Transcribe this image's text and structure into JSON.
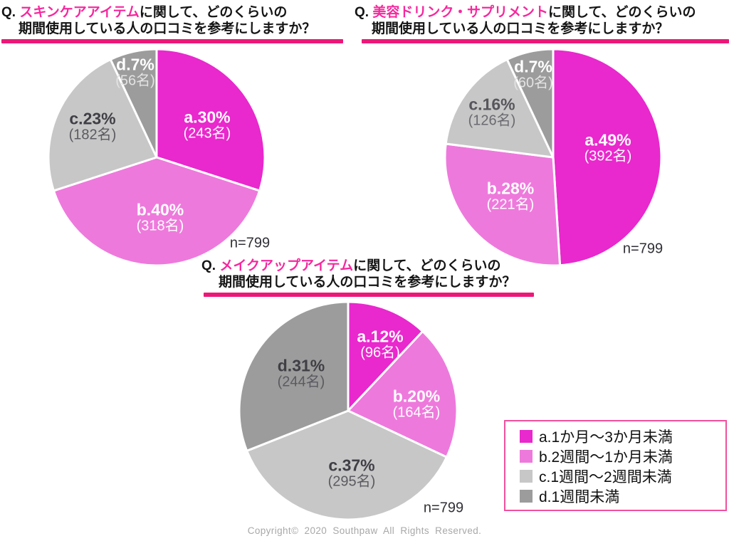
{
  "chart_data": {
    "type": "pie",
    "legend_position": "bottom-right",
    "palette": [
      "#E928CD",
      "#EE79DC",
      "#C7C7C7",
      "#9C9C9C"
    ],
    "categories": [
      "a.1か月～3か月未満",
      "b.2週間～1か月未満",
      "c.1週間～2週間未満",
      "d.1週間未満"
    ],
    "charts": [
      {
        "question_prefix": "Q. ",
        "subject": "スキンケアアイテム",
        "question_suffix": "に関して、どのくらいの",
        "question_line2": "期間使用している人の口コミを参考にしますか？",
        "n_label": "n=799",
        "values": [
          30,
          40,
          23,
          7
        ],
        "counts": [
          243,
          318,
          182,
          56
        ],
        "slice_labels": [
          {
            "pct": "a.30%",
            "count": "(243名)"
          },
          {
            "pct": "b.40%",
            "count": "(318名)"
          },
          {
            "pct": "c.23%",
            "count": "(182名)"
          },
          {
            "pct": "d.7%",
            "count": "(56名)"
          }
        ]
      },
      {
        "question_prefix": "Q. ",
        "subject": "美容ドリンク・サプリメント",
        "question_suffix": "に関して、どのくらいの",
        "question_line2": "期間使用している人の口コミを参考にしますか？",
        "n_label": "n=799",
        "values": [
          49,
          28,
          16,
          7
        ],
        "counts": [
          392,
          221,
          126,
          60
        ],
        "slice_labels": [
          {
            "pct": "a.49%",
            "count": "(392名)"
          },
          {
            "pct": "b.28%",
            "count": "(221名)"
          },
          {
            "pct": "c.16%",
            "count": "(126名)"
          },
          {
            "pct": "d.7%",
            "count": "(60名)"
          }
        ]
      },
      {
        "question_prefix": "Q. ",
        "subject": "メイクアップアイテム",
        "question_suffix": "に関して、どのくらいの",
        "question_line2": "期間使用している人の口コミを参考にしますか？",
        "n_label": "n=799",
        "values": [
          12,
          20,
          37,
          31
        ],
        "counts": [
          96,
          164,
          295,
          244
        ],
        "slice_labels": [
          {
            "pct": "a.12%",
            "count": "(96名)"
          },
          {
            "pct": "b.20%",
            "count": "(164名)"
          },
          {
            "pct": "c.37%",
            "count": "(295名)"
          },
          {
            "pct": "d.31%",
            "count": "(244名)"
          }
        ]
      }
    ]
  },
  "legend": {
    "items": [
      {
        "label": "a.1か月～3か月未満"
      },
      {
        "label": "b.2週間～1か月未満"
      },
      {
        "label": "c.1週間～2週間未満"
      },
      {
        "label": "d.1週間未満"
      }
    ]
  },
  "footer": {
    "copyright": "Copyright©  2020  Southpaw  All  Rights  Reserved."
  },
  "colors": {
    "series_a": "#E928CD",
    "series_b": "#EE79DC",
    "series_c": "#C7C7C7",
    "series_d": "#9C9C9C",
    "title_highlight": "#F6289E",
    "title_underline": "#EC1879",
    "legend_border": "#F0509E"
  }
}
